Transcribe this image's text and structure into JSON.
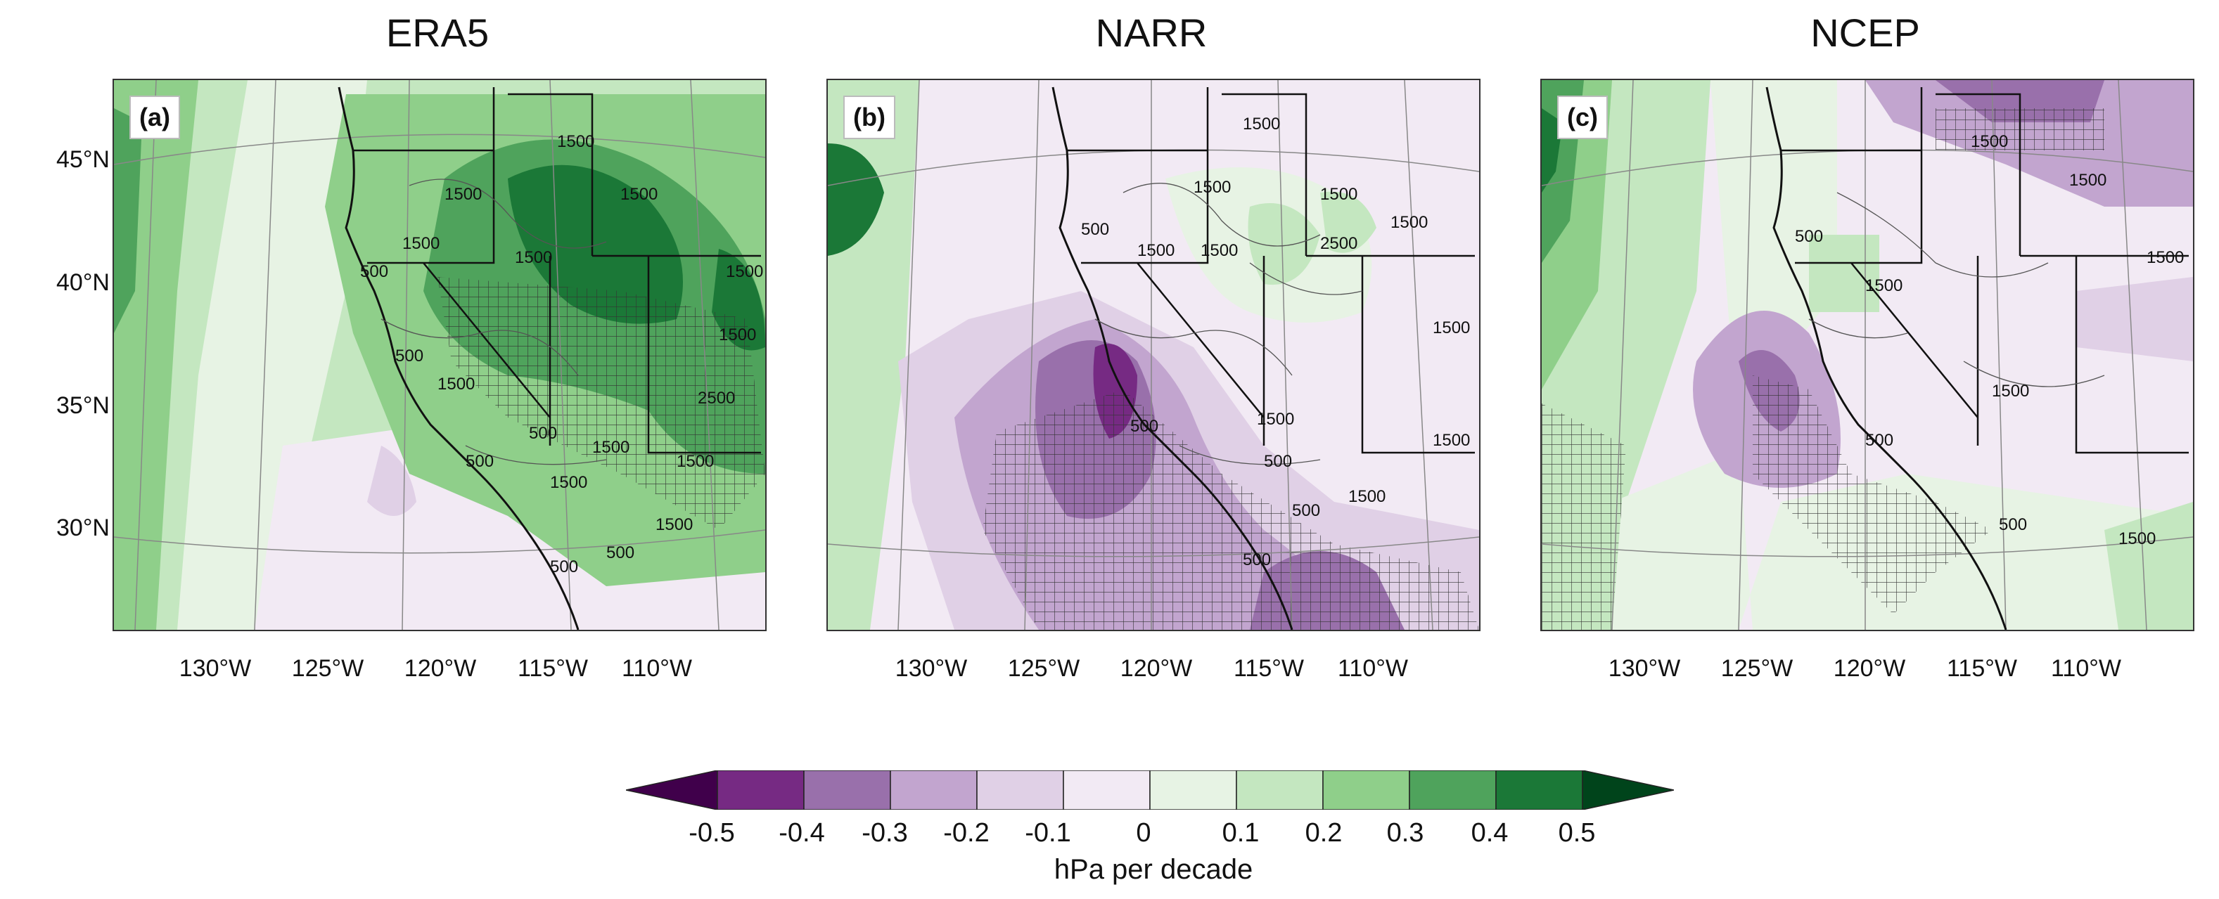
{
  "panels": [
    {
      "title": "ERA5",
      "label": "(a)",
      "contours": [
        "1500",
        "1500",
        "1500",
        "1500",
        "1500",
        "500",
        "500",
        "1500",
        "1500",
        "1500",
        "500",
        "1500",
        "1500",
        "2500",
        "1500",
        "500",
        "1500",
        "500",
        "500"
      ]
    },
    {
      "title": "NARR",
      "label": "(b)",
      "contours": [
        "1500",
        "500",
        "1500",
        "1500",
        "1500",
        "2500",
        "1500",
        "1500",
        "1500",
        "1500",
        "500",
        "500",
        "500",
        "1500",
        "500",
        "1500"
      ]
    },
    {
      "title": "NCEP",
      "label": "(c)",
      "contours": [
        "1500",
        "1500",
        "500",
        "1500",
        "1500",
        "1500",
        "500",
        "500",
        "1500"
      ]
    }
  ],
  "latitudes": [
    "45°N",
    "40°N",
    "35°N",
    "30°N"
  ],
  "longitudes": [
    "130°W",
    "125°W",
    "120°W",
    "115°W",
    "110°W"
  ],
  "colorbar": {
    "title": "hPa per decade",
    "labels": [
      "-0.5",
      "-0.4",
      "-0.3",
      "-0.2",
      "-0.1",
      "0",
      "0.1",
      "0.2",
      "0.3",
      "0.4",
      "0.5"
    ],
    "colors": [
      "#40004b",
      "#762a83",
      "#9970ab",
      "#c2a5cf",
      "#e0d0e6",
      "#f2eaf4",
      "#e7f3e4",
      "#c4e7c0",
      "#8fcf8a",
      "#4fa35c",
      "#1b7837",
      "#00441b"
    ]
  }
}
